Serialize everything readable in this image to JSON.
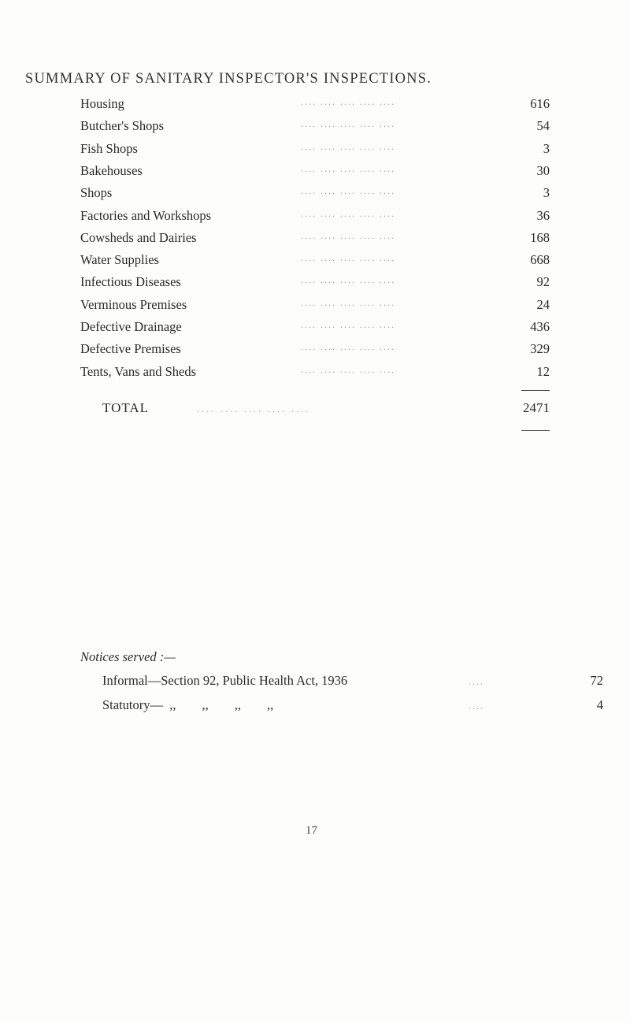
{
  "title": "SUMMARY OF SANITARY INSPECTOR'S INSPECTIONS.",
  "rows": [
    {
      "label": "Housing",
      "value": "616"
    },
    {
      "label": "Butcher's Shops",
      "value": "54"
    },
    {
      "label": "Fish Shops",
      "value": "3"
    },
    {
      "label": "Bakehouses",
      "value": "30"
    },
    {
      "label": "Shops",
      "value": "3"
    },
    {
      "label": "Factories and Workshops",
      "value": "36"
    },
    {
      "label": "Cowsheds and Dairies",
      "value": "168"
    },
    {
      "label": "Water Supplies",
      "value": "668"
    },
    {
      "label": "Infectious Diseases",
      "value": "92"
    },
    {
      "label": "Verminous Premises",
      "value": "24"
    },
    {
      "label": "Defective Drainage",
      "value": "436"
    },
    {
      "label": "Defective Premises",
      "value": "329"
    },
    {
      "label": "Tents, Vans and Sheds",
      "value": "12"
    }
  ],
  "total": {
    "label": "TOTAL",
    "value": "2471"
  },
  "notices": {
    "heading": "Notices served :—",
    "items": [
      {
        "label": "Informal—Section 92, Public Health Act, 1936",
        "value": "72"
      },
      {
        "label": "Statutory—  ,,        ,,        ,,        ,,",
        "value": "4"
      }
    ]
  },
  "page_number": "17"
}
